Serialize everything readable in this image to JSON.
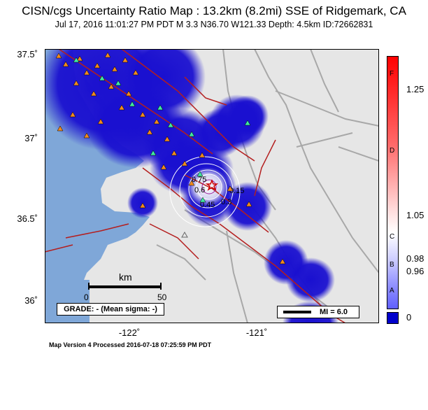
{
  "header": {
    "title": "CISN/cgs Uncertainty Ratio Map : 13.2km (8.2mi) SSE of Ridgemark, CA",
    "subtitle": "Jul 17, 2016 11:01:27 PM PDT   M 3.3   N36.70 W121.33   Depth: 4.5km   ID:72662831"
  },
  "axes": {
    "lat_labels": [
      "37.5˚",
      "37˚",
      "36.5˚",
      "36˚"
    ],
    "lon_labels": [
      "-122˚",
      "-121˚"
    ]
  },
  "contours": [
    "0.75",
    "0.6",
    "0.45",
    "0.3",
    "0.15"
  ],
  "scale_bar": {
    "unit": "km",
    "tick_start": "0",
    "tick_end": "50"
  },
  "grade": "GRADE: - (Mean sigma: -)",
  "mi_legend": "MI = 6.0",
  "colorbar": {
    "letters": [
      "F",
      "D",
      "C",
      "B",
      "A"
    ],
    "values": [
      "1.25",
      "1.05",
      "0.98",
      "0.96",
      "0"
    ]
  },
  "footer": "Map Version 4 Processed 2016-07-18 07:25:59 PM PDT",
  "colors": {
    "ocean": "#7fa7d8",
    "land": "#e6e6e6",
    "uncertainty_blue": "#1a10d0",
    "fault": "#b41e1e",
    "road": "#a8a8a8",
    "station_triangle": "#f08a1e",
    "station_green": "#40e8a0"
  },
  "icons": {
    "epicenter": "star-icon",
    "stations": "triangle-icon"
  }
}
